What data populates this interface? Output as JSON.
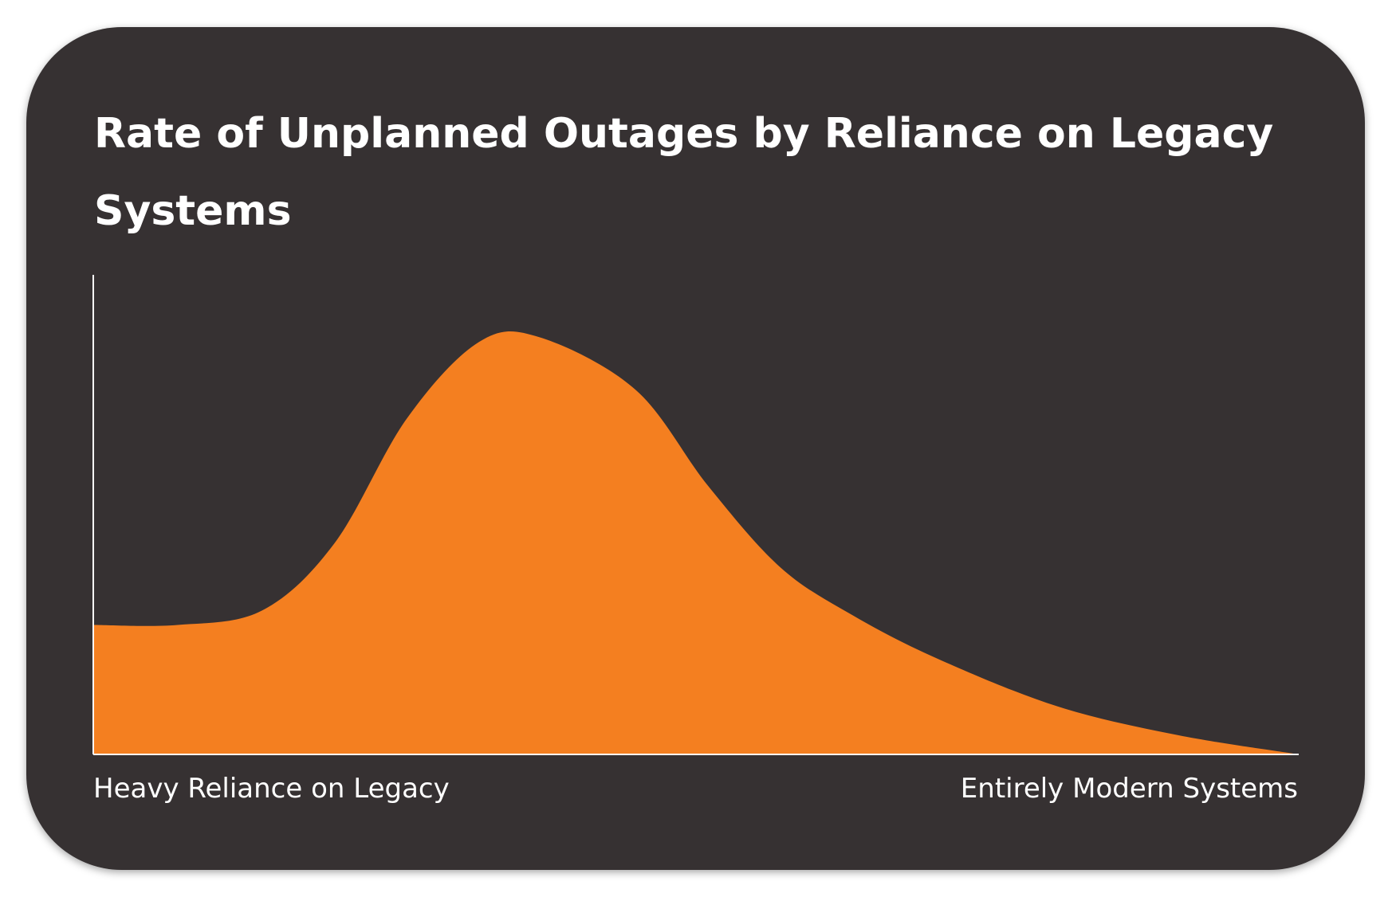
{
  "chart_data": {
    "type": "area",
    "title": "Rate of Unplanned Outages by Reliance on Legacy Systems",
    "x_start_label": "Heavy Reliance on Legacy",
    "x_end_label": "Entirely Modern Systems",
    "xlim": [
      0,
      100
    ],
    "ylim": [
      0,
      100
    ],
    "x": [
      0,
      7,
      14,
      20,
      26,
      32,
      37,
      45,
      51,
      57,
      63,
      70,
      80,
      90,
      100
    ],
    "values": [
      27,
      27,
      30,
      44,
      70,
      86,
      87,
      76,
      56,
      39,
      29,
      20,
      10,
      4,
      0
    ],
    "colors": {
      "fill": "#F47F20",
      "background": "#363132",
      "axis": "#FFFFFF",
      "text": "#FFFFFF"
    },
    "grid": false,
    "legend": "none"
  }
}
